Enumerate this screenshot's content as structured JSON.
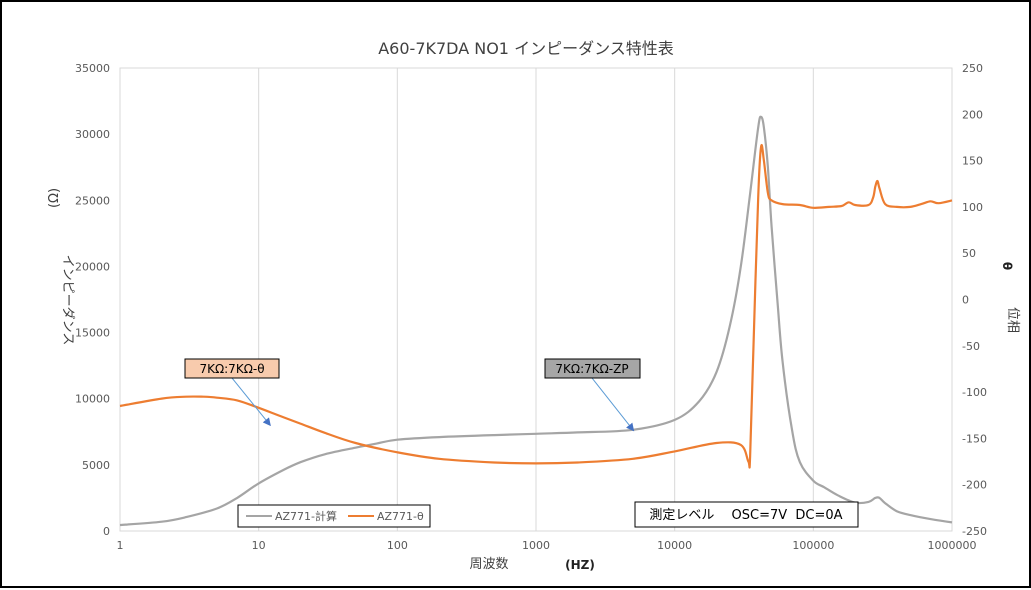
{
  "chart_data": {
    "type": "line",
    "title": "A60-7K7DA NO1 インピーダンス特性表",
    "xlabel": "周波数",
    "xunit": "(HZ)",
    "ylabel": "インピーダンス",
    "yunit": "(Ω)",
    "y2label": "位相",
    "y2unit": "θ",
    "xscale": "log",
    "xlim": [
      1,
      1000000
    ],
    "ylim": [
      0,
      35000
    ],
    "y2lim": [
      -250,
      250
    ],
    "x_ticks": [
      "1",
      "10",
      "100",
      "1000",
      "10000",
      "100000",
      "1000000"
    ],
    "y_ticks": [
      "0",
      "5000",
      "10000",
      "15000",
      "20000",
      "25000",
      "30000",
      "35000"
    ],
    "y2_ticks": [
      "-250",
      "-200",
      "-150",
      "-100",
      "-50",
      "0",
      "50",
      "100",
      "150",
      "200",
      "250"
    ],
    "grid": "vertical major lines",
    "legend_position": "bottom-left",
    "series": [
      {
        "name": "AZ771-計算",
        "axis": "left",
        "color": "#a5a5a5",
        "x": [
          1,
          2,
          3,
          5,
          7,
          10,
          15,
          20,
          30,
          50,
          70,
          100,
          200,
          500,
          1000,
          2000,
          5000,
          10000,
          15000,
          20000,
          25000,
          30000,
          35000,
          40000,
          42000,
          44000,
          47000,
          50000,
          55000,
          60000,
          70000,
          80000,
          100000,
          120000,
          150000,
          200000,
          250000,
          280000,
          300000,
          330000,
          400000,
          500000,
          700000,
          1000000
        ],
        "y": [
          450,
          700,
          1050,
          1700,
          2500,
          3600,
          4600,
          5200,
          5800,
          6300,
          6600,
          6900,
          7100,
          7250,
          7350,
          7450,
          7650,
          8400,
          9800,
          12000,
          15500,
          20000,
          25500,
          30500,
          31300,
          30500,
          27500,
          23000,
          17500,
          12800,
          7700,
          5200,
          3800,
          3300,
          2700,
          2150,
          2200,
          2500,
          2500,
          2100,
          1500,
          1200,
          900,
          650
        ]
      },
      {
        "name": "AZ771-θ",
        "axis": "right",
        "color": "#ed7d31",
        "x": [
          1,
          2,
          3,
          4,
          5,
          7,
          10,
          15,
          20,
          30,
          50,
          100,
          200,
          500,
          1000,
          2000,
          5000,
          10000,
          20000,
          30000,
          34000,
          35000,
          37000,
          40000,
          42000,
          44000,
          47000,
          50000,
          60000,
          80000,
          100000,
          130000,
          160000,
          180000,
          200000,
          250000,
          270000,
          280000,
          290000,
          300000,
          330000,
          400000,
          500000,
          600000,
          700000,
          800000,
          1000000
        ],
        "y": [
          -115,
          -107,
          -105,
          -105,
          -106,
          -109,
          -117,
          -127,
          -134,
          -144,
          -155,
          -165,
          -172,
          -176,
          -177,
          -176,
          -172,
          -164,
          -155,
          -157,
          -175,
          -170,
          -50,
          110,
          165,
          150,
          115,
          107,
          103,
          102,
          99,
          100,
          101,
          105,
          102,
          102,
          110,
          122,
          128,
          120,
          103,
          100,
          100,
          103,
          106,
          104,
          107
        ]
      }
    ],
    "annotations": [
      {
        "text": "7KΩ:7KΩ-θ",
        "target_series": "AZ771-θ",
        "target_x": 12,
        "target_y": -135
      },
      {
        "text": "7KΩ:7KΩ-ZP",
        "target_series": "AZ771-計算",
        "target_x": 5000,
        "target_y": 7650
      }
    ],
    "note": "測定レベル　 OSC=7V  DC=0A"
  }
}
